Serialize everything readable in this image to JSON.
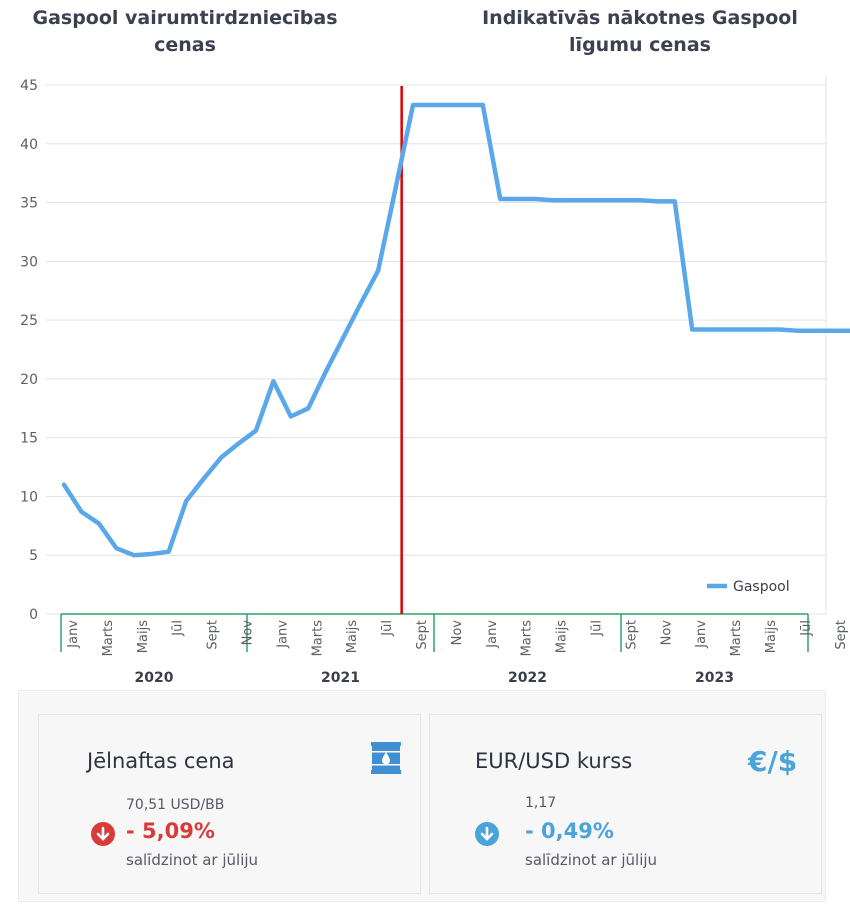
{
  "header": {
    "left_title": "Gaspool vairumtirdzniecības cenas",
    "right_title": "Indikatīvās nākotnes Gaspool līgumu cenas"
  },
  "chart_data": {
    "type": "line",
    "y_ticks": [
      "0",
      "5",
      "10",
      "15",
      "20",
      "25",
      "30",
      "35",
      "40",
      "45"
    ],
    "ylim": [
      0,
      45
    ],
    "grid": true,
    "legend_position": "bottom-right",
    "series": [
      {
        "name": "Gaspool",
        "color": "#5aa8ea",
        "x": [
          1,
          2,
          3,
          4,
          5,
          6,
          7,
          8,
          9,
          10,
          11,
          12,
          13,
          14,
          15,
          16,
          17,
          18,
          19,
          20,
          21,
          22,
          23,
          24,
          25,
          26,
          27,
          28,
          29,
          30,
          31,
          32,
          33,
          34,
          35,
          36,
          37,
          38,
          39,
          40,
          41,
          42,
          43,
          44,
          45,
          46,
          47,
          48
        ],
        "values": [
          11.0,
          8.7,
          7.7,
          5.6,
          5.0,
          5.1,
          5.3,
          9.6,
          11.5,
          13.3,
          14.5,
          15.6,
          19.8,
          16.8,
          17.5,
          20.6,
          23.5,
          26.4,
          29.2,
          36.2,
          43.3,
          43.3,
          43.3,
          43.3,
          43.3,
          35.3,
          35.3,
          35.3,
          35.2,
          35.2,
          35.2,
          35.2,
          35.2,
          35.2,
          35.1,
          35.1,
          24.2,
          24.2,
          24.2,
          24.2,
          24.2,
          24.2,
          24.1,
          24.1,
          24.1,
          24.1,
          24.1,
          24.1
        ]
      }
    ],
    "month_labels": [
      "Janv",
      "Marts",
      "Maijs",
      "Jūl",
      "Sept",
      "Nov"
    ],
    "year_labels": [
      "2020",
      "2021",
      "2022",
      "2023"
    ],
    "divider_color": "#e00000",
    "divider_position": "Sept 2021"
  },
  "cards": {
    "oil": {
      "title": "Jēlnaftas cena",
      "value": "70,51 USD/BB",
      "change": "- 5,09%",
      "note": "salīdzinot ar jūliju",
      "change_color": "#d93a3a",
      "icon": "oil-barrel-icon"
    },
    "fx": {
      "title": "EUR/USD kurss",
      "value": "1,17",
      "change": "- 0,49%",
      "note": "salīdzinot ar jūliju",
      "symbol": "€/$",
      "change_color": "#4aa3d9",
      "icon": "currency-icon"
    }
  }
}
